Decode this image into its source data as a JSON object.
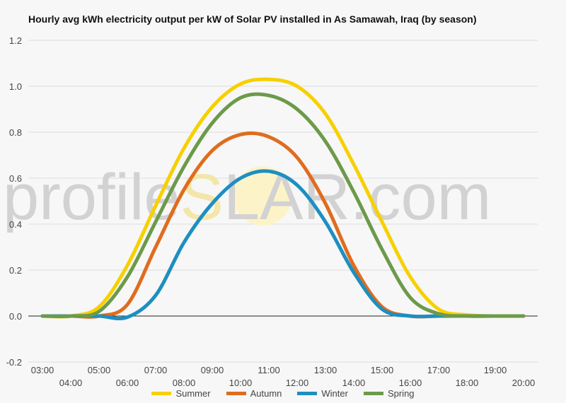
{
  "watermark": {
    "left": "profile",
    "sun": "S",
    "right": "LAR.com"
  },
  "chart_data": {
    "type": "line",
    "title": "Hourly avg kWh electricity output per kW of Solar PV installed in As Samawah, Iraq (by season)",
    "xlabel": "",
    "ylabel": "",
    "ylim": [
      -0.2,
      1.2
    ],
    "xlim": [
      2.5,
      20.5
    ],
    "grid": true,
    "legend_position": "bottom",
    "y_ticks": [
      "-0.2",
      "0.0",
      "0.2",
      "0.4",
      "0.6",
      "0.8",
      "1.0",
      "1.2"
    ],
    "x_ticks": [
      "03:00",
      "04:00",
      "05:00",
      "06:00",
      "07:00",
      "08:00",
      "09:00",
      "10:00",
      "11:00",
      "12:00",
      "13:00",
      "14:00",
      "15:00",
      "16:00",
      "17:00",
      "18:00",
      "19:00",
      "20:00"
    ],
    "x": [
      3,
      4,
      5,
      6,
      7,
      8,
      9,
      10,
      11,
      12,
      13,
      14,
      15,
      16,
      17,
      18,
      19,
      20
    ],
    "series": [
      {
        "name": "Summer",
        "color": "#f7d000",
        "values": [
          0,
          0,
          0.04,
          0.22,
          0.48,
          0.73,
          0.91,
          1.01,
          1.03,
          1.0,
          0.88,
          0.66,
          0.41,
          0.17,
          0.03,
          0.005,
          0,
          0
        ]
      },
      {
        "name": "Autumn",
        "color": "#e06c1e",
        "values": [
          0,
          0,
          0,
          0.05,
          0.3,
          0.55,
          0.72,
          0.79,
          0.78,
          0.69,
          0.49,
          0.22,
          0.04,
          0,
          0,
          0,
          0,
          0
        ]
      },
      {
        "name": "Winter",
        "color": "#1d8fc0",
        "values": [
          0,
          0,
          0,
          -0.005,
          0.09,
          0.32,
          0.49,
          0.6,
          0.63,
          0.57,
          0.41,
          0.19,
          0.03,
          0,
          0,
          0,
          0,
          0
        ]
      },
      {
        "name": "Spring",
        "color": "#6d9a4a",
        "values": [
          0,
          0,
          0.02,
          0.17,
          0.41,
          0.65,
          0.84,
          0.95,
          0.96,
          0.9,
          0.76,
          0.54,
          0.29,
          0.08,
          0.01,
          0,
          0,
          0
        ]
      }
    ]
  }
}
